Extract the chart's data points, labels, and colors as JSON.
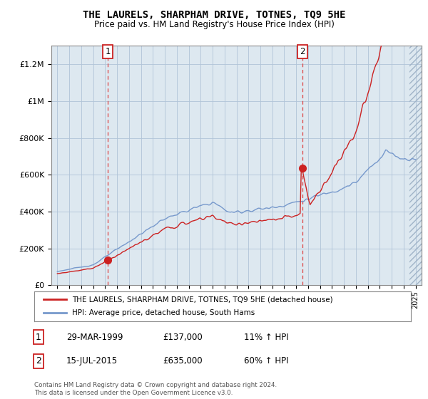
{
  "title": "THE LAURELS, SHARPHAM DRIVE, TOTNES, TQ9 5HE",
  "subtitle": "Price paid vs. HM Land Registry's House Price Index (HPI)",
  "legend_line1": "THE LAURELS, SHARPHAM DRIVE, TOTNES, TQ9 5HE (detached house)",
  "legend_line2": "HPI: Average price, detached house, South Hams",
  "footnote": "Contains HM Land Registry data © Crown copyright and database right 2024.\nThis data is licensed under the Open Government Licence v3.0.",
  "sale1_label": "1",
  "sale1_date": "29-MAR-1999",
  "sale1_price": "£137,000",
  "sale1_hpi": "11% ↑ HPI",
  "sale2_label": "2",
  "sale2_date": "15-JUL-2015",
  "sale2_price": "£635,000",
  "sale2_hpi": "60% ↑ HPI",
  "sale1_year": 1999.23,
  "sale1_value": 137000,
  "sale2_year": 2015.54,
  "sale2_value": 635000,
  "red_color": "#cc2222",
  "blue_color": "#7799cc",
  "vline_color": "#dd4444",
  "marker_color": "#cc2222",
  "ylim_min": 0,
  "ylim_max": 1300000,
  "xlim_min": 1994.5,
  "xlim_max": 2025.5,
  "background_color": "#dde8f0",
  "grid_color": "#b0c4d8",
  "yticks": [
    0,
    200000,
    400000,
    600000,
    800000,
    1000000,
    1200000
  ],
  "ylabels": [
    "£0",
    "£200K",
    "£400K",
    "£600K",
    "£800K",
    "£1M",
    "£1.2M"
  ]
}
